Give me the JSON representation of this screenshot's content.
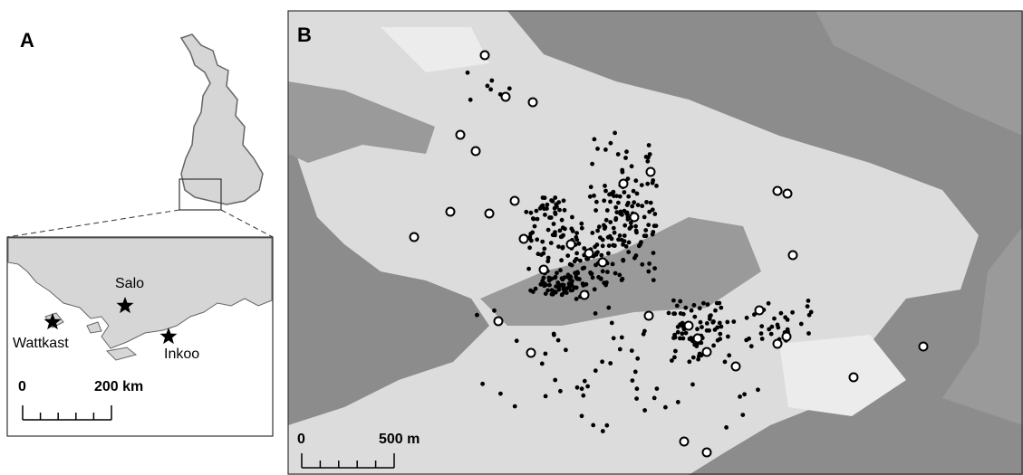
{
  "panel_a": {
    "label": "A",
    "places": [
      "Salo",
      "Wattkast",
      "Inkoo"
    ],
    "scale": {
      "start": "0",
      "end": "200 km"
    }
  },
  "panel_b": {
    "label": "B",
    "scale": {
      "start": "0",
      "end": "500 m"
    }
  }
}
